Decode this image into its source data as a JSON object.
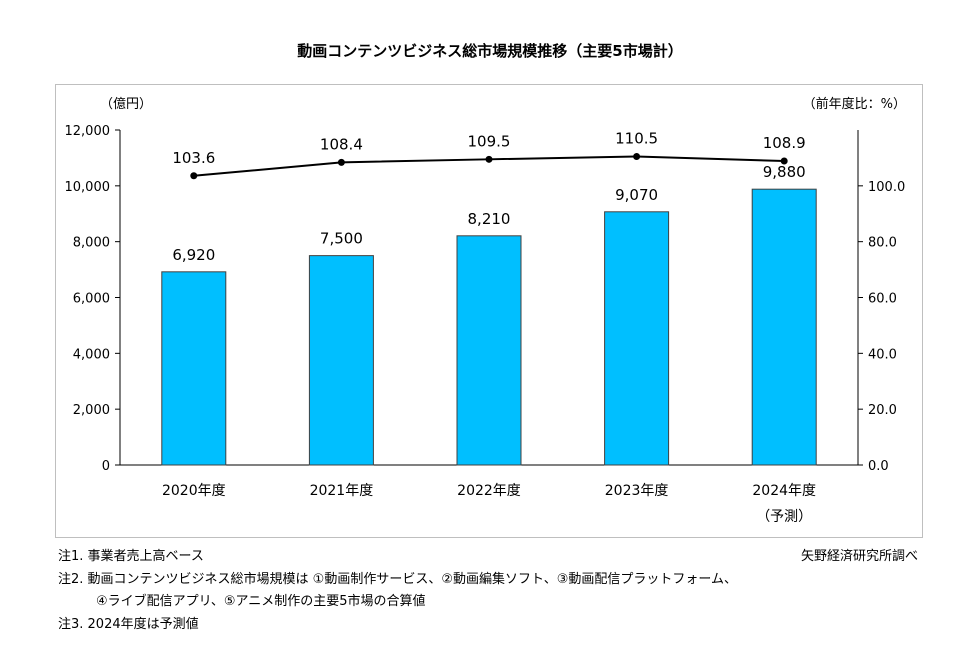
{
  "chart_data": {
    "type": "bar",
    "title": "動画コンテンツビジネス総市場規模推移（主要5市場計）",
    "categories": [
      "2020年度",
      "2021年度",
      "2022年度",
      "2023年度",
      "2024年度"
    ],
    "category_sublabels": [
      "",
      "",
      "",
      "",
      "（予測）"
    ],
    "series": [
      {
        "name": "市場規模（億円）",
        "type": "bar",
        "axis": "left",
        "values": [
          6920,
          7500,
          8210,
          9070,
          9880
        ],
        "labels": [
          "6,920",
          "7,500",
          "8,210",
          "9,070",
          "9,880"
        ],
        "color": "#00bfff"
      },
      {
        "name": "前年度比（%）",
        "type": "line",
        "axis": "right",
        "values": [
          103.6,
          108.4,
          109.5,
          110.5,
          108.9
        ],
        "labels": [
          "103.6",
          "108.4",
          "109.5",
          "110.5",
          "108.9"
        ],
        "color": "#000000"
      }
    ],
    "left_axis": {
      "label": "（億円）",
      "min": 0,
      "max": 12000,
      "ticks": [
        "0",
        "2,000",
        "4,000",
        "6,000",
        "8,000",
        "10,000",
        "12,000"
      ]
    },
    "right_axis": {
      "label": "（前年度比：%）",
      "min": 0,
      "max": 120,
      "ticks": [
        "0.0",
        "20.0",
        "40.0",
        "60.0",
        "80.0",
        "100.0"
      ]
    },
    "grid": false
  },
  "notes": [
    "注1.  事業者売上高ベース",
    "注2.  動画コンテンツビジネス総市場規模は ①動画制作サービス、②動画編集ソフト、③動画配信プラットフォーム、",
    "④ライブ配信アプリ、⑤アニメ制作の主要5市場の合算値",
    "注3.  2024年度は予測値"
  ],
  "source": "矢野経済研究所調べ"
}
